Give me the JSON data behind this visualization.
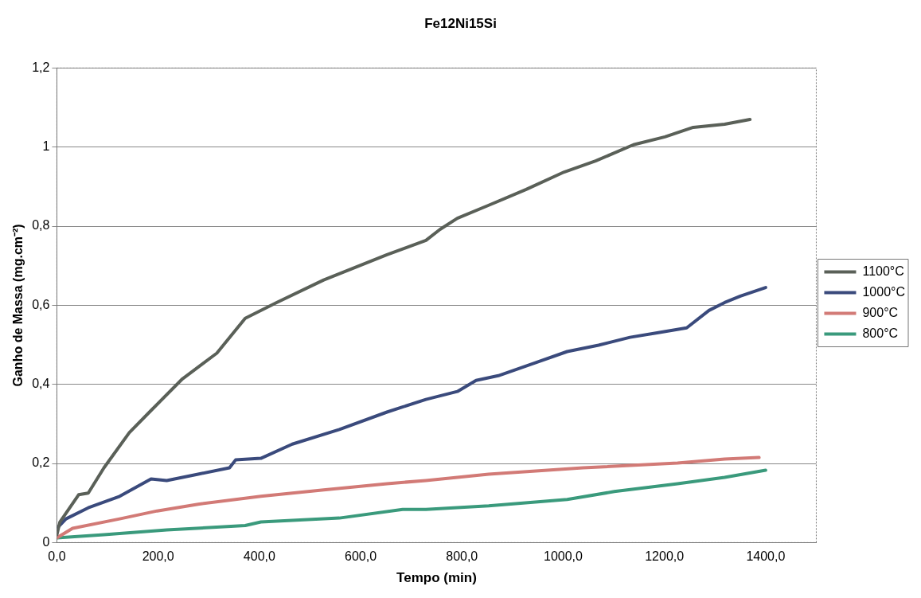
{
  "chart_data": {
    "type": "line",
    "title": "Fe12Ni15Si",
    "xlabel": "Tempo (min)",
    "ylabel": "Ganho de Massa (mg.cm⁻²)",
    "xlim": [
      0,
      1500
    ],
    "xticks": [
      {
        "value": 0,
        "label": "0,0"
      },
      {
        "value": 200,
        "label": "200,0"
      },
      {
        "value": 400,
        "label": "400,0"
      },
      {
        "value": 600,
        "label": "600,0"
      },
      {
        "value": 800,
        "label": "800,0"
      },
      {
        "value": 1000,
        "label": "1000,0"
      },
      {
        "value": 1200,
        "label": "1200,0"
      },
      {
        "value": 1400,
        "label": "1400,0"
      }
    ],
    "ylim": [
      0,
      1.2
    ],
    "yticks": [
      0,
      {
        "value": 0.2,
        "label": "0,2"
      },
      {
        "value": 0.4,
        "label": "0,4"
      },
      {
        "value": 0.6,
        "label": "0,6"
      },
      {
        "value": 0.8,
        "label": "0,8"
      },
      1,
      {
        "value": 1.2,
        "label": "1,2"
      }
    ],
    "grid": "y",
    "legend": "right",
    "marker": "none",
    "line_style": "solid",
    "series": [
      {
        "name": "1100°C",
        "color": "#5a6058",
        "x": [
          0,
          6,
          43,
          62,
          93,
          143,
          186,
          248,
          316,
          372,
          434,
          527,
          652,
          729,
          757,
          791,
          853,
          927,
          1002,
          1064,
          1139,
          1201,
          1257,
          1319,
          1369
        ],
        "values": [
          0.02,
          0.052,
          0.121,
          0.125,
          0.189,
          0.278,
          0.334,
          0.414,
          0.479,
          0.567,
          0.607,
          0.664,
          0.728,
          0.764,
          0.792,
          0.82,
          0.853,
          0.893,
          0.937,
          0.965,
          1.006,
          1.026,
          1.05,
          1.058,
          1.07
        ]
      },
      {
        "name": "1000°C",
        "color": "#3a4a7c",
        "x": [
          0,
          18,
          62,
          124,
          186,
          217,
          279,
          341,
          353,
          403,
          465,
          558,
          652,
          729,
          791,
          828,
          872,
          946,
          1008,
          1070,
          1132,
          1188,
          1244,
          1288,
          1319,
          1350,
          1400
        ],
        "values": [
          0.036,
          0.06,
          0.088,
          0.117,
          0.161,
          0.157,
          0.173,
          0.189,
          0.209,
          0.213,
          0.249,
          0.286,
          0.33,
          0.362,
          0.382,
          0.41,
          0.422,
          0.455,
          0.483,
          0.499,
          0.519,
          0.531,
          0.543,
          0.587,
          0.607,
          0.623,
          0.645
        ]
      },
      {
        "name": "900°C",
        "color": "#d27a76",
        "x": [
          0,
          31,
          124,
          198,
          279,
          403,
          527,
          652,
          729,
          853,
          1039,
          1226,
          1319,
          1387
        ],
        "values": [
          0.012,
          0.036,
          0.06,
          0.08,
          0.097,
          0.117,
          0.133,
          0.149,
          0.157,
          0.173,
          0.189,
          0.201,
          0.211,
          0.215
        ]
      },
      {
        "name": "800°C",
        "color": "#3a9a7c",
        "x": [
          0,
          93,
          217,
          372,
          403,
          558,
          683,
          729,
          853,
          1008,
          1101,
          1226,
          1319,
          1400
        ],
        "values": [
          0.012,
          0.02,
          0.032,
          0.043,
          0.052,
          0.062,
          0.084,
          0.084,
          0.093,
          0.109,
          0.129,
          0.149,
          0.165,
          0.183
        ]
      }
    ]
  }
}
